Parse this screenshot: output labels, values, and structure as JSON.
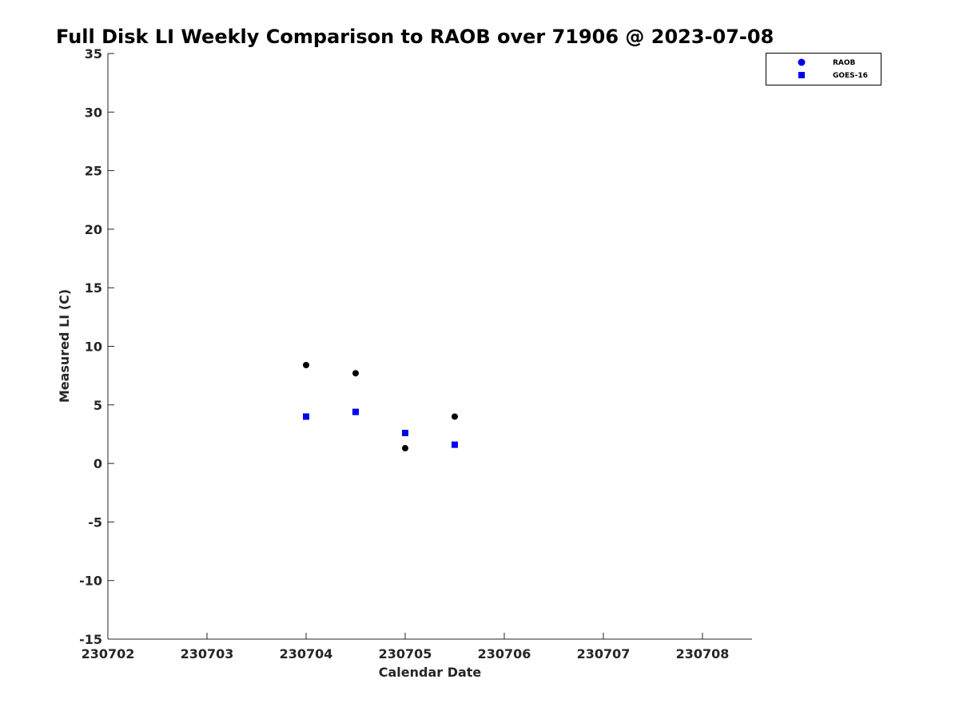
{
  "chart_data": {
    "type": "scatter",
    "title": "Full Disk LI Weekly Comparison to RAOB over 71906 @ 2023-07-08",
    "xlabel": "Calendar Date",
    "ylabel": "Measured LI (C)",
    "x_tick_labels": [
      "230702",
      "230703",
      "230704",
      "230705",
      "230706",
      "230707",
      "230708"
    ],
    "y_ticks": [
      -15,
      -10,
      -5,
      0,
      5,
      10,
      15,
      20,
      25,
      30,
      35
    ],
    "xlim": [
      230702,
      230708.5
    ],
    "ylim": [
      -15,
      35
    ],
    "grid": false,
    "legend_position": "top-right",
    "series": [
      {
        "name": "RAOB",
        "marker": "circle",
        "legend_color": "#0000ee",
        "point_color": "#000000",
        "x": [
          230704,
          230704.5,
          230705,
          230705.5
        ],
        "y": [
          8.4,
          7.7,
          1.3,
          4.0
        ]
      },
      {
        "name": "GOES-16",
        "marker": "square",
        "legend_color": "#0000ee",
        "point_color": "#0000ee",
        "x": [
          230704,
          230704.5,
          230705,
          230705.5
        ],
        "y": [
          4.0,
          4.4,
          2.6,
          1.6
        ]
      }
    ]
  }
}
